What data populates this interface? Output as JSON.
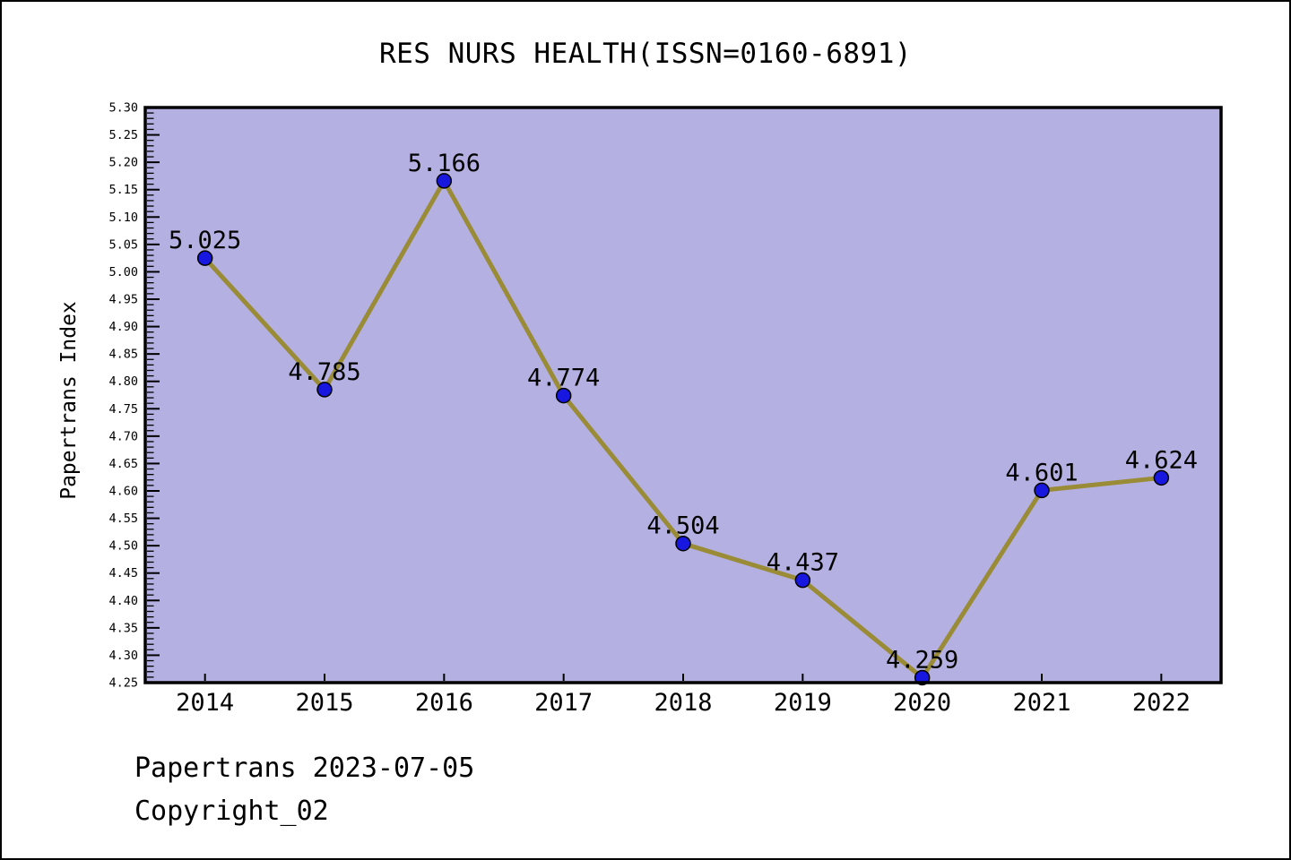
{
  "header": {
    "title": "RES NURS HEALTH(ISSN=0160-6891)"
  },
  "footer": {
    "line1": "Papertrans 2023-07-05",
    "line2": "Copyright_02"
  },
  "chart_data": {
    "type": "line",
    "title": "RES NURS HEALTH(ISSN=0160-6891)",
    "xlabel": "",
    "ylabel": "Papertrans Index",
    "x": [
      2014,
      2015,
      2016,
      2017,
      2018,
      2019,
      2020,
      2021,
      2022
    ],
    "values": [
      5.025,
      4.785,
      5.166,
      4.774,
      4.504,
      4.437,
      4.259,
      4.601,
      4.624
    ],
    "point_labels": [
      "5.025",
      "4.785",
      "5.166",
      "4.774",
      "4.504",
      "4.437",
      "4.259",
      "4.601",
      "4.624"
    ],
    "series_name": "Papertrans Index",
    "xlim": [
      2013.5,
      2022.5
    ],
    "ylim": [
      4.25,
      5.3
    ],
    "ytick_major_step": 0.05,
    "ytick_minor_step": 0.01,
    "ytick_labels": [
      "4.25",
      "4.30",
      "4.35",
      "4.40",
      "4.45",
      "4.50",
      "4.55",
      "4.60",
      "4.65",
      "4.70",
      "4.75",
      "4.80",
      "4.85",
      "4.90",
      "4.95",
      "5.00",
      "5.05",
      "5.10",
      "5.15",
      "5.20",
      "5.25",
      "5.30"
    ],
    "grid": false,
    "legend": null,
    "marker": "circle",
    "colors": {
      "plot_bg": "#b4b0e1",
      "line": "#9a8b36",
      "marker_fill": "#1717e0",
      "marker_edge": "#000000",
      "axis": "#000000",
      "text": "#000000",
      "page_bg": "#ffffff"
    }
  }
}
